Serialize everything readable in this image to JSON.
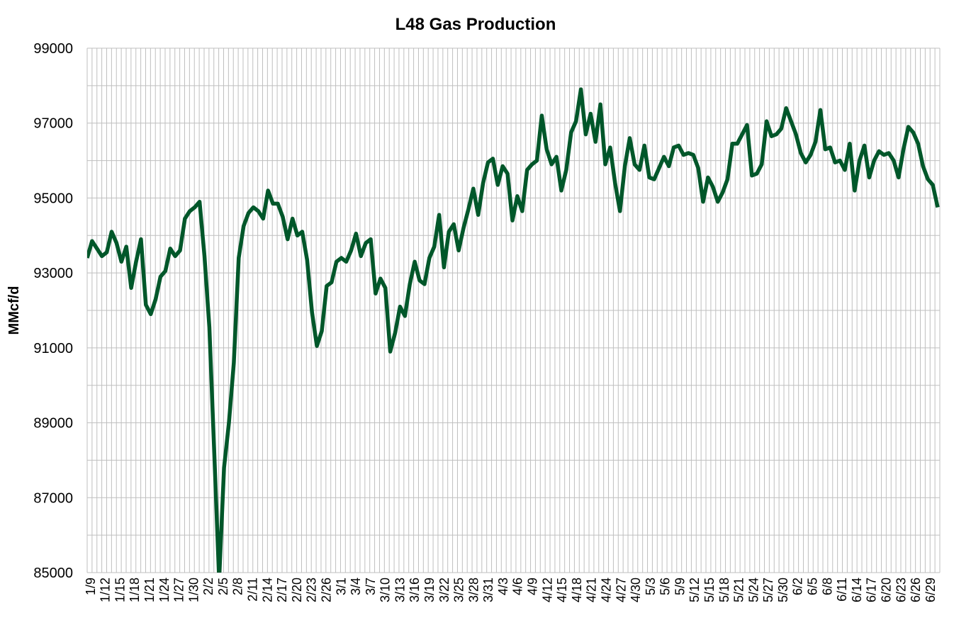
{
  "chart_data": {
    "type": "line",
    "title": "L48 Gas Production",
    "xlabel": "",
    "ylabel": "MMcf/d",
    "ylim": [
      85000,
      99000
    ],
    "y_ticks": [
      85000,
      87000,
      89000,
      91000,
      93000,
      95000,
      97000,
      99000
    ],
    "y_minor_step": 1000,
    "grid": true,
    "x_first": "1/9",
    "x_tick_labels": [
      "1/9",
      "1/12",
      "1/15",
      "1/18",
      "1/21",
      "1/24",
      "1/27",
      "1/30",
      "2/2",
      "2/5",
      "2/8",
      "2/11",
      "2/14",
      "2/17",
      "2/20",
      "2/23",
      "2/26",
      "3/1",
      "3/4",
      "3/7",
      "3/10",
      "3/13",
      "3/16",
      "3/19",
      "3/22",
      "3/25",
      "3/28",
      "3/31",
      "4/3",
      "4/6",
      "4/9",
      "4/12",
      "4/15",
      "4/18",
      "4/21",
      "4/24",
      "4/27",
      "4/30",
      "5/3",
      "5/6",
      "5/9",
      "5/12",
      "5/15",
      "5/18",
      "5/21",
      "5/24",
      "5/27",
      "5/30",
      "6/2",
      "6/5",
      "6/8",
      "6/11",
      "6/14",
      "6/17",
      "6/20",
      "6/23",
      "6/26",
      "6/29"
    ],
    "series": [
      {
        "name": "L48 Gas Production",
        "color": "#00572a",
        "values": [
          93400,
          93850,
          93650,
          93450,
          93550,
          94100,
          93800,
          93300,
          93700,
          92600,
          93300,
          93900,
          92150,
          91900,
          92300,
          92900,
          93050,
          93650,
          93450,
          93600,
          94450,
          94650,
          94750,
          94900,
          93450,
          91550,
          88200,
          84800,
          87800,
          89000,
          90600,
          93400,
          94250,
          94600,
          94750,
          94650,
          94450,
          95200,
          94850,
          94850,
          94500,
          93900,
          94450,
          94000,
          94100,
          93350,
          91950,
          91050,
          91450,
          92650,
          92750,
          93300,
          93400,
          93300,
          93600,
          94050,
          93450,
          93800,
          93900,
          92450,
          92850,
          92600,
          90900,
          91400,
          92100,
          91850,
          92700,
          93300,
          92800,
          92700,
          93400,
          93700,
          94550,
          93150,
          94100,
          94300,
          93600,
          94200,
          94700,
          95250,
          94550,
          95400,
          95950,
          96050,
          95350,
          95850,
          95650,
          94400,
          95050,
          94650,
          95750,
          95900,
          96000,
          97200,
          96300,
          95900,
          96100,
          95200,
          95750,
          96750,
          97050,
          97900,
          96700,
          97250,
          96500,
          97500,
          95900,
          96350,
          95400,
          94650,
          95850,
          96600,
          95900,
          95750,
          96400,
          95550,
          95500,
          95800,
          96100,
          95850,
          96350,
          96400,
          96150,
          96200,
          96150,
          95800,
          94900,
          95550,
          95300,
          94900,
          95150,
          95500,
          96450,
          96450,
          96700,
          96950,
          95600,
          95650,
          95900,
          97050,
          96650,
          96700,
          96850,
          97400,
          97050,
          96700,
          96200,
          95950,
          96150,
          96500,
          97350,
          96300,
          96350,
          95950,
          96000,
          95750,
          96450,
          95200,
          96000,
          96400,
          95550,
          96000,
          96250,
          96150,
          96200,
          96000,
          95550,
          96300,
          96900,
          96750,
          96450,
          95850,
          95500,
          95350,
          94750
        ]
      }
    ]
  }
}
